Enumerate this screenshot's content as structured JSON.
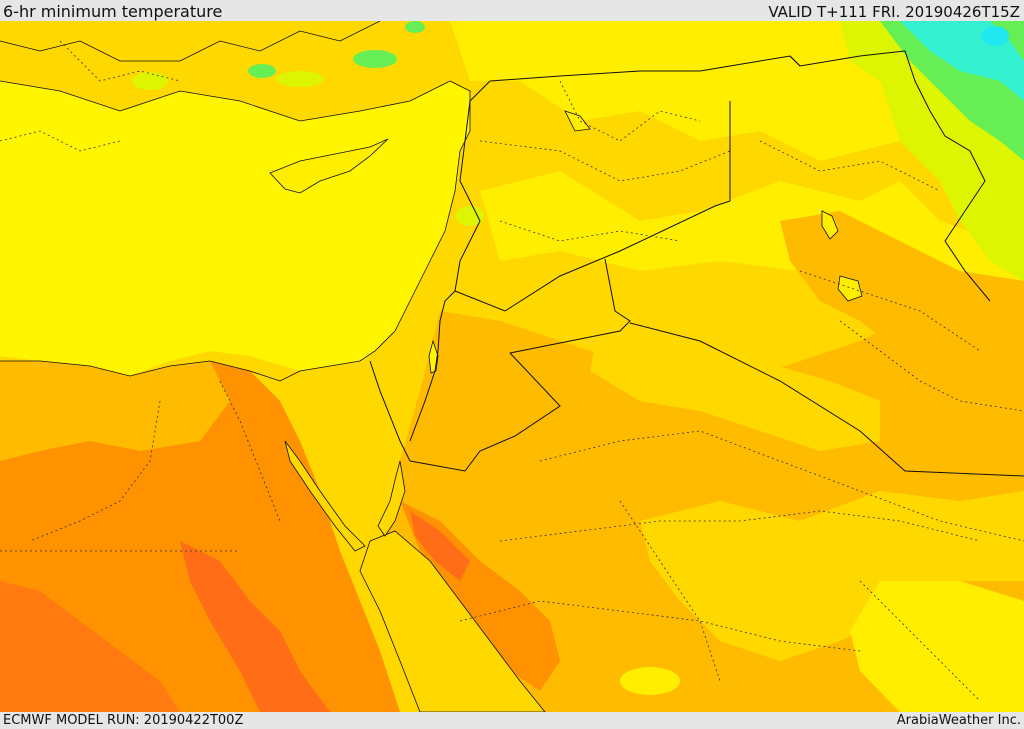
{
  "header": {
    "title": "6-hr minimum temperature",
    "valid": "VALID T+111 FRI. 20190426T15Z"
  },
  "footer": {
    "model_run": "ECMWF MODEL RUN: 20190422T00Z",
    "brand": "ArabiaWeather Inc."
  },
  "colors": {
    "sea": "#fff500",
    "yellow": "#ffee00",
    "light_orange": "#ffd800",
    "orange": "#ffbb00",
    "dark_orange": "#ff9200",
    "deep_orange": "#ff6e16",
    "lime": "#ddf500",
    "green": "#66ef55",
    "cyan": "#33f0d0",
    "border": "#111111"
  }
}
